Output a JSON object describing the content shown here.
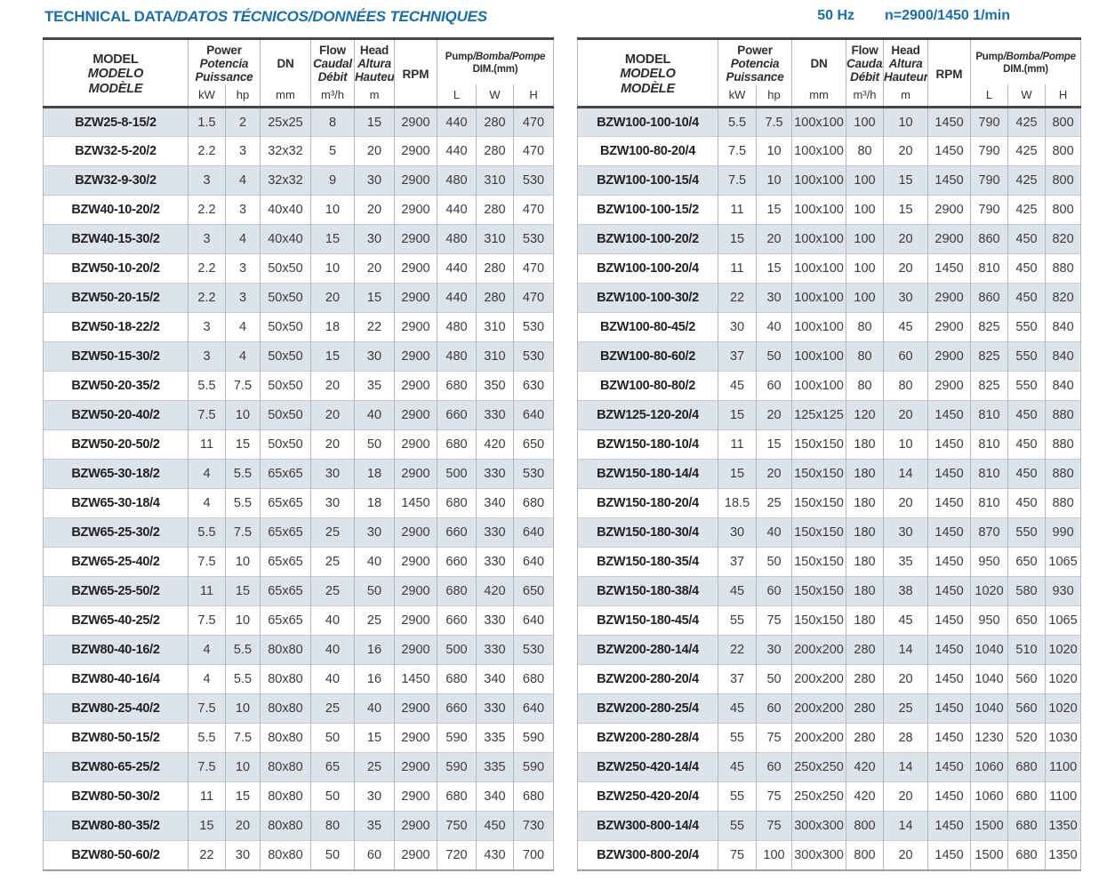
{
  "title": {
    "main": "TECHNICAL DATA",
    "rest": "/DATOS TÉCNICOS/DONNÉES TECHNIQUES"
  },
  "frequency": "50 Hz",
  "speed": "n=2900/1450 1/min",
  "colors": {
    "accent_blue": "#1a6fa8",
    "row_shade": "#dce3e9",
    "rule_dark": "#464646"
  },
  "header": {
    "model": [
      "MODEL",
      "MODELO",
      "MODÈLE"
    ],
    "power": [
      "Power",
      "Potencia",
      "Puissance"
    ],
    "power_units": [
      "kW",
      "hp"
    ],
    "dn": "DN",
    "dn_unit": "mm",
    "flow": [
      "Flow",
      "Caudal",
      "Débit"
    ],
    "flow_unit": "m³/h",
    "head": [
      "Head",
      "Altura",
      "Hauteur"
    ],
    "head_unit": "m",
    "rpm": "RPM",
    "dim_line1_a": "Pump",
    "dim_line1_b": "/Bomba/Pompe",
    "dim_line2": "DIM.(mm)",
    "dim_units": [
      "L",
      "W",
      "H"
    ]
  },
  "left_rows": [
    [
      "BZW25-8-15/2",
      "1.5",
      "2",
      "25x25",
      "8",
      "15",
      "2900",
      "440",
      "280",
      "470"
    ],
    [
      "BZW32-5-20/2",
      "2.2",
      "3",
      "32x32",
      "5",
      "20",
      "2900",
      "440",
      "280",
      "470"
    ],
    [
      "BZW32-9-30/2",
      "3",
      "4",
      "32x32",
      "9",
      "30",
      "2900",
      "480",
      "310",
      "530"
    ],
    [
      "BZW40-10-20/2",
      "2.2",
      "3",
      "40x40",
      "10",
      "20",
      "2900",
      "440",
      "280",
      "470"
    ],
    [
      "BZW40-15-30/2",
      "3",
      "4",
      "40x40",
      "15",
      "30",
      "2900",
      "480",
      "310",
      "530"
    ],
    [
      "BZW50-10-20/2",
      "2.2",
      "3",
      "50x50",
      "10",
      "20",
      "2900",
      "440",
      "280",
      "470"
    ],
    [
      "BZW50-20-15/2",
      "2.2",
      "3",
      "50x50",
      "20",
      "15",
      "2900",
      "440",
      "280",
      "470"
    ],
    [
      "BZW50-18-22/2",
      "3",
      "4",
      "50x50",
      "18",
      "22",
      "2900",
      "480",
      "310",
      "530"
    ],
    [
      "BZW50-15-30/2",
      "3",
      "4",
      "50x50",
      "15",
      "30",
      "2900",
      "480",
      "310",
      "530"
    ],
    [
      "BZW50-20-35/2",
      "5.5",
      "7.5",
      "50x50",
      "20",
      "35",
      "2900",
      "680",
      "350",
      "630"
    ],
    [
      "BZW50-20-40/2",
      "7.5",
      "10",
      "50x50",
      "20",
      "40",
      "2900",
      "660",
      "330",
      "640"
    ],
    [
      "BZW50-20-50/2",
      "11",
      "15",
      "50x50",
      "20",
      "50",
      "2900",
      "680",
      "420",
      "650"
    ],
    [
      "BZW65-30-18/2",
      "4",
      "5.5",
      "65x65",
      "30",
      "18",
      "2900",
      "500",
      "330",
      "530"
    ],
    [
      "BZW65-30-18/4",
      "4",
      "5.5",
      "65x65",
      "30",
      "18",
      "1450",
      "680",
      "340",
      "680"
    ],
    [
      "BZW65-25-30/2",
      "5.5",
      "7.5",
      "65x65",
      "25",
      "30",
      "2900",
      "660",
      "330",
      "640"
    ],
    [
      "BZW65-25-40/2",
      "7.5",
      "10",
      "65x65",
      "25",
      "40",
      "2900",
      "660",
      "330",
      "640"
    ],
    [
      "BZW65-25-50/2",
      "11",
      "15",
      "65x65",
      "25",
      "50",
      "2900",
      "680",
      "420",
      "650"
    ],
    [
      "BZW65-40-25/2",
      "7.5",
      "10",
      "65x65",
      "40",
      "25",
      "2900",
      "660",
      "330",
      "640"
    ],
    [
      "BZW80-40-16/2",
      "4",
      "5.5",
      "80x80",
      "40",
      "16",
      "2900",
      "500",
      "330",
      "530"
    ],
    [
      "BZW80-40-16/4",
      "4",
      "5.5",
      "80x80",
      "40",
      "16",
      "1450",
      "680",
      "340",
      "680"
    ],
    [
      "BZW80-25-40/2",
      "7.5",
      "10",
      "80x80",
      "25",
      "40",
      "2900",
      "660",
      "330",
      "640"
    ],
    [
      "BZW80-50-15/2",
      "5.5",
      "7.5",
      "80x80",
      "50",
      "15",
      "2900",
      "590",
      "335",
      "590"
    ],
    [
      "BZW80-65-25/2",
      "7.5",
      "10",
      "80x80",
      "65",
      "25",
      "2900",
      "590",
      "335",
      "590"
    ],
    [
      "BZW80-50-30/2",
      "11",
      "15",
      "80x80",
      "50",
      "30",
      "2900",
      "680",
      "340",
      "680"
    ],
    [
      "BZW80-80-35/2",
      "15",
      "20",
      "80x80",
      "80",
      "35",
      "2900",
      "750",
      "450",
      "730"
    ],
    [
      "BZW80-50-60/2",
      "22",
      "30",
      "80x80",
      "50",
      "60",
      "2900",
      "720",
      "430",
      "700"
    ]
  ],
  "right_rows": [
    [
      "BZW100-100-10/4",
      "5.5",
      "7.5",
      "100x100",
      "100",
      "10",
      "1450",
      "790",
      "425",
      "800"
    ],
    [
      "BZW100-80-20/4",
      "7.5",
      "10",
      "100x100",
      "80",
      "20",
      "1450",
      "790",
      "425",
      "800"
    ],
    [
      "BZW100-100-15/4",
      "7.5",
      "10",
      "100x100",
      "100",
      "15",
      "1450",
      "790",
      "425",
      "800"
    ],
    [
      "BZW100-100-15/2",
      "11",
      "15",
      "100x100",
      "100",
      "15",
      "2900",
      "790",
      "425",
      "800"
    ],
    [
      "BZW100-100-20/2",
      "15",
      "20",
      "100x100",
      "100",
      "20",
      "2900",
      "860",
      "450",
      "820"
    ],
    [
      "BZW100-100-20/4",
      "11",
      "15",
      "100x100",
      "100",
      "20",
      "1450",
      "810",
      "450",
      "880"
    ],
    [
      "BZW100-100-30/2",
      "22",
      "30",
      "100x100",
      "100",
      "30",
      "2900",
      "860",
      "450",
      "820"
    ],
    [
      "BZW100-80-45/2",
      "30",
      "40",
      "100x100",
      "80",
      "45",
      "2900",
      "825",
      "550",
      "840"
    ],
    [
      "BZW100-80-60/2",
      "37",
      "50",
      "100x100",
      "80",
      "60",
      "2900",
      "825",
      "550",
      "840"
    ],
    [
      "BZW100-80-80/2",
      "45",
      "60",
      "100x100",
      "80",
      "80",
      "2900",
      "825",
      "550",
      "840"
    ],
    [
      "BZW125-120-20/4",
      "15",
      "20",
      "125x125",
      "120",
      "20",
      "1450",
      "810",
      "450",
      "880"
    ],
    [
      "BZW150-180-10/4",
      "11",
      "15",
      "150x150",
      "180",
      "10",
      "1450",
      "810",
      "450",
      "880"
    ],
    [
      "BZW150-180-14/4",
      "15",
      "20",
      "150x150",
      "180",
      "14",
      "1450",
      "810",
      "450",
      "880"
    ],
    [
      "BZW150-180-20/4",
      "18.5",
      "25",
      "150x150",
      "180",
      "20",
      "1450",
      "810",
      "450",
      "880"
    ],
    [
      "BZW150-180-30/4",
      "30",
      "40",
      "150x150",
      "180",
      "30",
      "1450",
      "870",
      "550",
      "990"
    ],
    [
      "BZW150-180-35/4",
      "37",
      "50",
      "150x150",
      "180",
      "35",
      "1450",
      "950",
      "650",
      "1065"
    ],
    [
      "BZW150-180-38/4",
      "45",
      "60",
      "150x150",
      "180",
      "38",
      "1450",
      "1020",
      "580",
      "930"
    ],
    [
      "BZW150-180-45/4",
      "55",
      "75",
      "150x150",
      "180",
      "45",
      "1450",
      "950",
      "650",
      "1065"
    ],
    [
      "BZW200-280-14/4",
      "22",
      "30",
      "200x200",
      "280",
      "14",
      "1450",
      "1040",
      "510",
      "1020"
    ],
    [
      "BZW200-280-20/4",
      "37",
      "50",
      "200x200",
      "280",
      "20",
      "1450",
      "1040",
      "560",
      "1020"
    ],
    [
      "BZW200-280-25/4",
      "45",
      "60",
      "200x200",
      "280",
      "25",
      "1450",
      "1040",
      "560",
      "1020"
    ],
    [
      "BZW200-280-28/4",
      "55",
      "75",
      "200x200",
      "280",
      "28",
      "1450",
      "1230",
      "520",
      "1030"
    ],
    [
      "BZW250-420-14/4",
      "45",
      "60",
      "250x250",
      "420",
      "14",
      "1450",
      "1060",
      "680",
      "1100"
    ],
    [
      "BZW250-420-20/4",
      "55",
      "75",
      "250x250",
      "420",
      "20",
      "1450",
      "1060",
      "680",
      "1100"
    ],
    [
      "BZW300-800-14/4",
      "55",
      "75",
      "300x300",
      "800",
      "14",
      "1450",
      "1500",
      "680",
      "1350"
    ],
    [
      "BZW300-800-20/4",
      "75",
      "100",
      "300x300",
      "800",
      "20",
      "1450",
      "1500",
      "680",
      "1350"
    ]
  ]
}
